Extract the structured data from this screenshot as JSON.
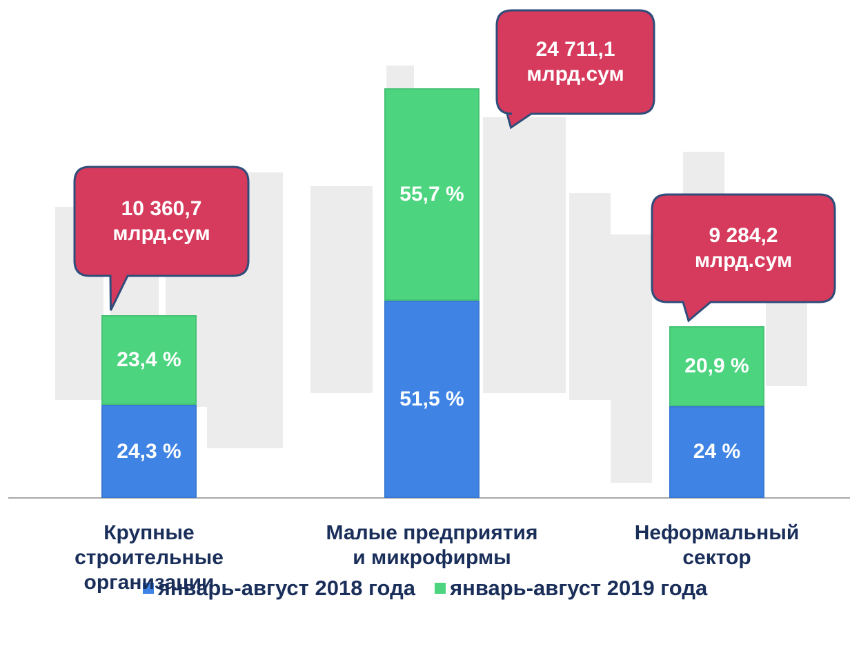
{
  "chart_data": {
    "type": "bar",
    "stacked": true,
    "categories": [
      "Крупные\nстроительные\nорганизации",
      "Малые предприятия\nи микрофирмы",
      "Неформальный\nсектор"
    ],
    "series": [
      {
        "name": "январь-август 2018 года",
        "color": "#3f84e5",
        "values": [
          24.3,
          51.5,
          24
        ],
        "value_labels": [
          "24,3 %",
          "51,5 %",
          "24 %"
        ]
      },
      {
        "name": "январь-август 2019 года",
        "color": "#4cd47f",
        "values": [
          23.4,
          55.7,
          20.9
        ],
        "value_labels": [
          "23,4 %",
          "55,7 %",
          "20,9 %"
        ]
      }
    ],
    "annotations": [
      "10 360,7\nмлрд.сум",
      "24 711,1\nмлрд.сум",
      "9 284,2\nмлрд.сум"
    ],
    "ylim": [
      0,
      110
    ]
  }
}
